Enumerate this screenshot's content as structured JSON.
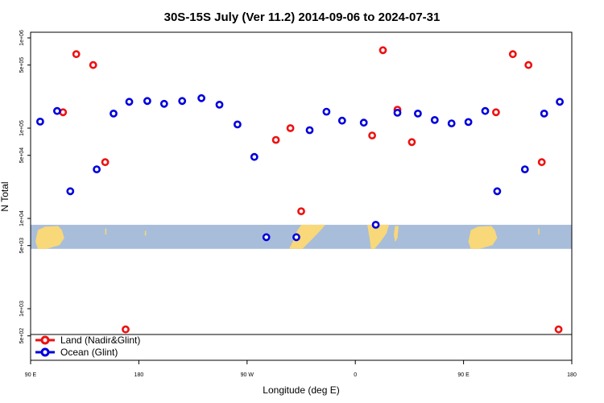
{
  "chart_data": {
    "type": "scatter",
    "title": "30S-15S July (Ver 11.2)   2014-09-06 to 2024-07-31",
    "xlabel": "Longitude (deg E)",
    "ylabel": "N Total",
    "x_axis": {
      "range_deg_east": [
        90,
        540
      ],
      "ticks": [
        {
          "value": 90,
          "label": "90 E"
        },
        {
          "value": 180,
          "label": "180"
        },
        {
          "value": 270,
          "label": "90 W"
        },
        {
          "value": 360,
          "label": "0"
        },
        {
          "value": 450,
          "label": "90 E"
        },
        {
          "value": 540,
          "label": "180"
        }
      ]
    },
    "y_axis": {
      "scale": "log",
      "range": [
        400,
        1000000
      ],
      "ticks": [
        {
          "value": 500,
          "label": "5e+02"
        },
        {
          "value": 1000,
          "label": "1e+03"
        },
        {
          "value": 5000,
          "label": "5e+03"
        },
        {
          "value": 10000,
          "label": "1e+04"
        },
        {
          "value": 50000,
          "label": "5e+04"
        },
        {
          "value": 100000,
          "label": "1e+05"
        },
        {
          "value": 500000,
          "label": "5e+05"
        },
        {
          "value": 1000000,
          "label": "1e+06"
        }
      ]
    },
    "background_map": {
      "lat_band": "30S-15S",
      "ocean_color": "#a8bdda",
      "land_color": "#f8d878",
      "y_range": [
        4600,
        8500
      ]
    },
    "legend": {
      "placement": "bottom-left"
    },
    "series": [
      {
        "name": "Land (Nadir&Glint)",
        "color": "#ee1111",
        "points": [
          {
            "x": 117,
            "y": 150000
          },
          {
            "x": 128,
            "y": 660000
          },
          {
            "x": 142,
            "y": 500000
          },
          {
            "x": 152,
            "y": 42000
          },
          {
            "x": 169,
            "y": 590
          },
          {
            "x": 294,
            "y": 74000
          },
          {
            "x": 306,
            "y": 100000
          },
          {
            "x": 315,
            "y": 12000
          },
          {
            "x": 374,
            "y": 83000
          },
          {
            "x": 383,
            "y": 730000
          },
          {
            "x": 395,
            "y": 160000
          },
          {
            "x": 407,
            "y": 70000
          },
          {
            "x": 477,
            "y": 150000
          },
          {
            "x": 491,
            "y": 660000
          },
          {
            "x": 504,
            "y": 500000
          },
          {
            "x": 515,
            "y": 42000
          },
          {
            "x": 529,
            "y": 590
          }
        ]
      },
      {
        "name": "Ocean (Glint)",
        "color": "#0000dd",
        "points": [
          {
            "x": 98,
            "y": 118000
          },
          {
            "x": 112,
            "y": 155000
          },
          {
            "x": 123,
            "y": 20000
          },
          {
            "x": 145,
            "y": 35000
          },
          {
            "x": 159,
            "y": 145000
          },
          {
            "x": 172,
            "y": 196000
          },
          {
            "x": 187,
            "y": 200000
          },
          {
            "x": 201,
            "y": 186000
          },
          {
            "x": 216,
            "y": 200000
          },
          {
            "x": 232,
            "y": 215000
          },
          {
            "x": 247,
            "y": 182000
          },
          {
            "x": 262,
            "y": 110000
          },
          {
            "x": 276,
            "y": 48000
          },
          {
            "x": 286,
            "y": 6200
          },
          {
            "x": 311,
            "y": 6200
          },
          {
            "x": 322,
            "y": 95000
          },
          {
            "x": 336,
            "y": 152000
          },
          {
            "x": 349,
            "y": 121000
          },
          {
            "x": 367,
            "y": 115000
          },
          {
            "x": 377,
            "y": 8500
          },
          {
            "x": 395,
            "y": 148000
          },
          {
            "x": 412,
            "y": 145000
          },
          {
            "x": 426,
            "y": 123000
          },
          {
            "x": 440,
            "y": 113000
          },
          {
            "x": 454,
            "y": 117000
          },
          {
            "x": 468,
            "y": 155000
          },
          {
            "x": 478,
            "y": 20000
          },
          {
            "x": 501,
            "y": 35000
          },
          {
            "x": 517,
            "y": 145000
          },
          {
            "x": 530,
            "y": 196000
          }
        ]
      }
    ]
  }
}
